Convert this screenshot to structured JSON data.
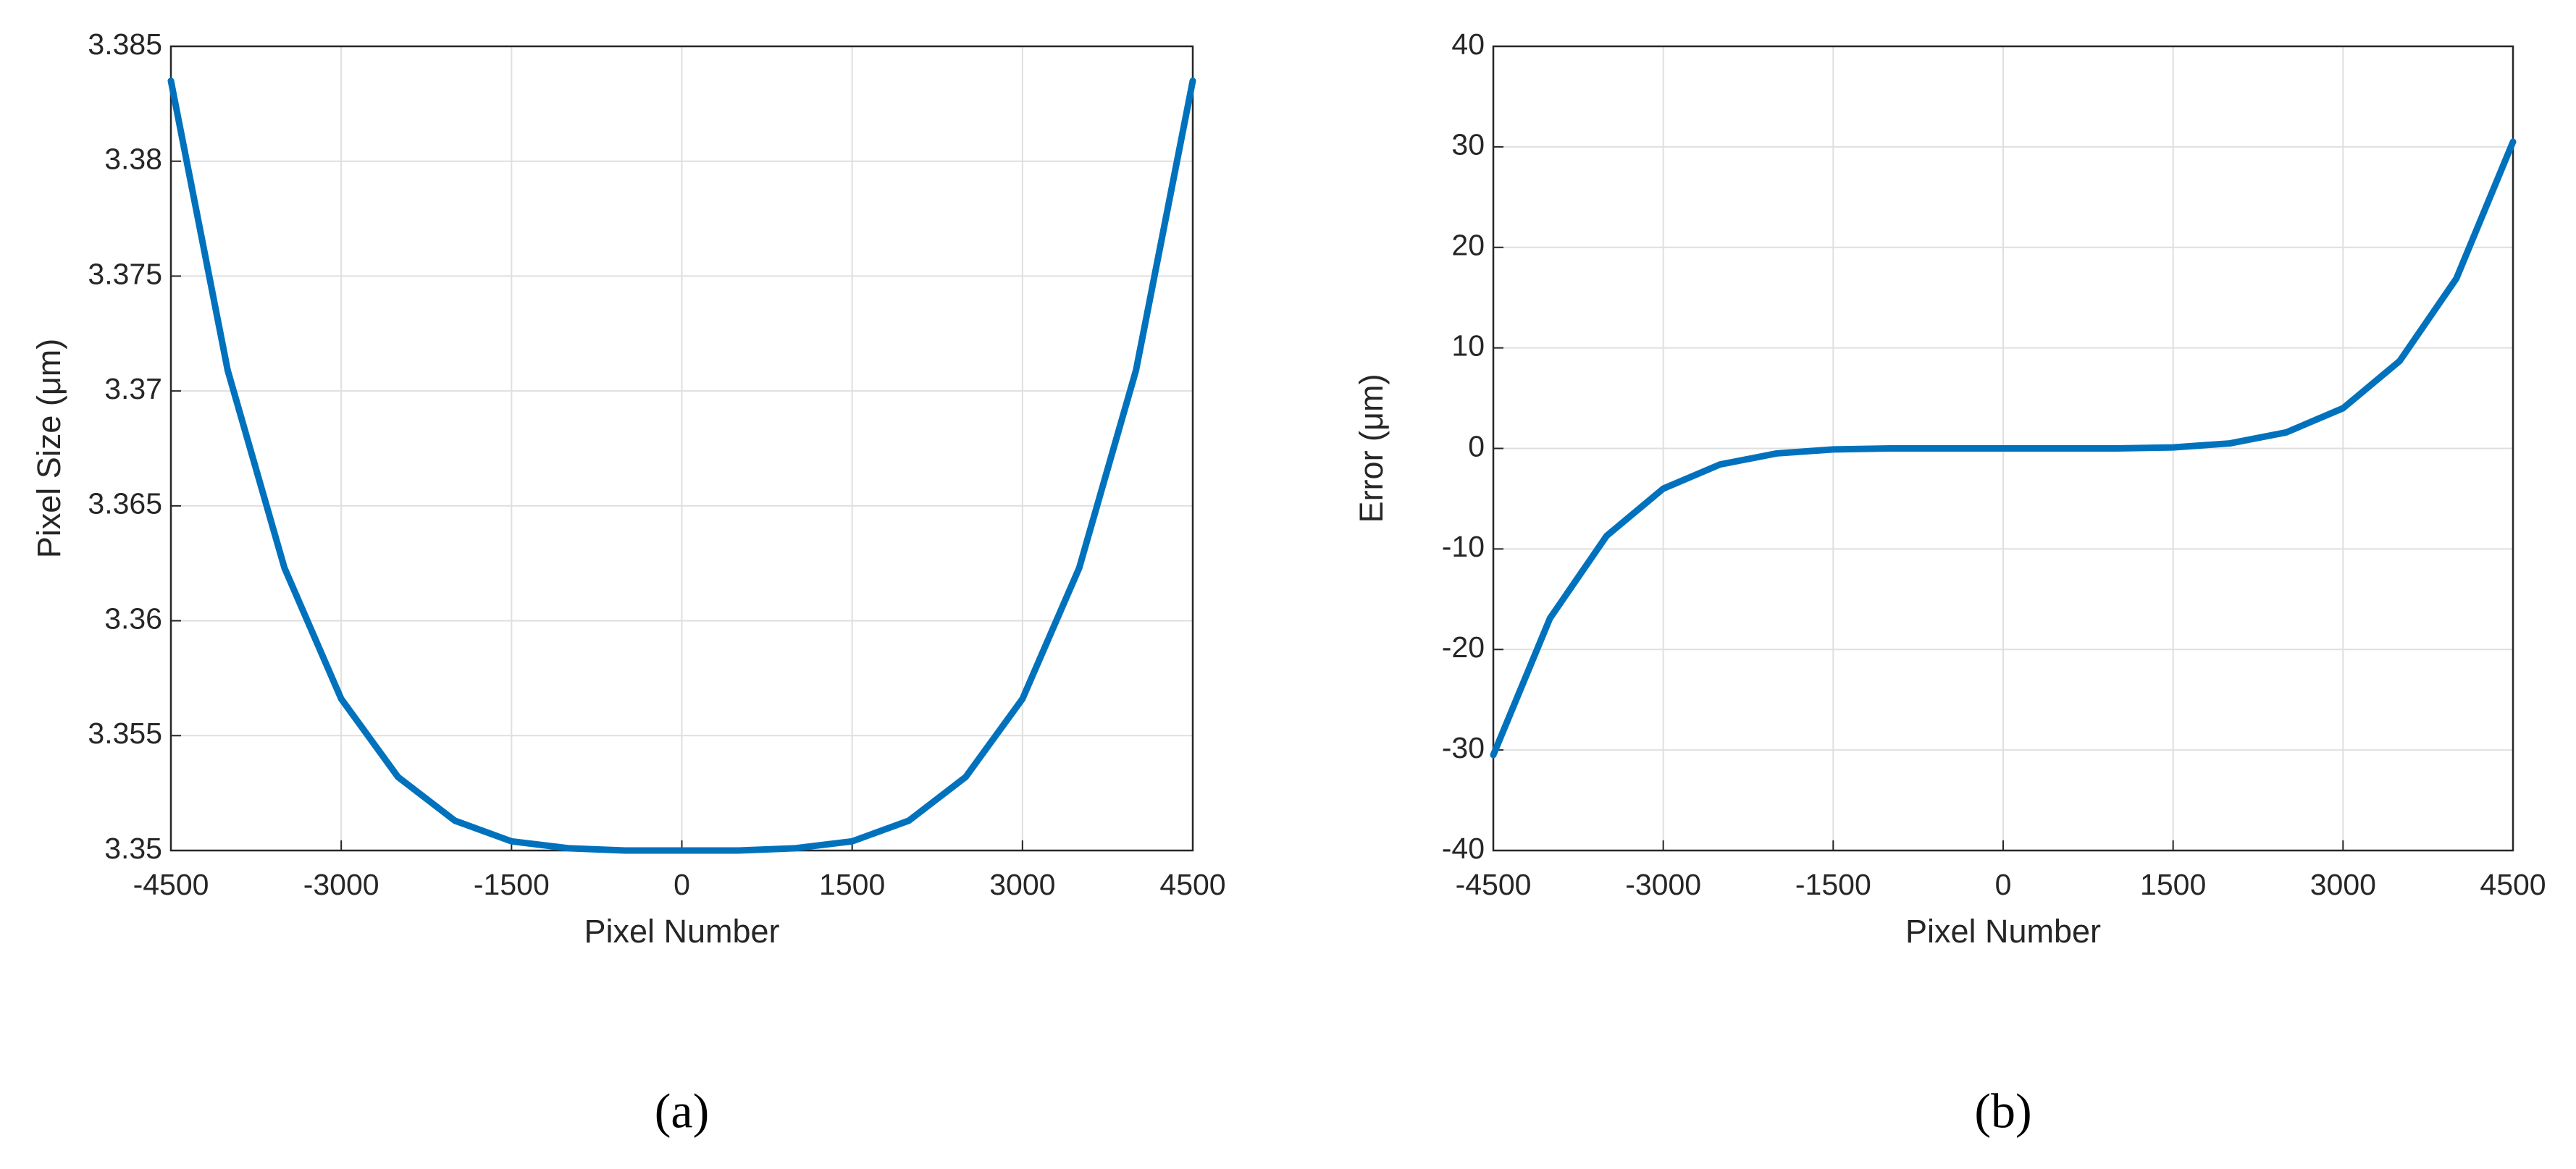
{
  "chart_data": [
    {
      "type": "line",
      "caption": "(a)",
      "xlabel": "Pixel Number",
      "ylabel": "Pixel Size (μm)",
      "x": [
        -4500,
        -4000,
        -3500,
        -3000,
        -2500,
        -2000,
        -1500,
        -1000,
        -500,
        0,
        500,
        1000,
        1500,
        2000,
        2500,
        3000,
        3500,
        4000,
        4500
      ],
      "values": [
        3.3835,
        3.3709,
        3.3623,
        3.3566,
        3.3532,
        3.3513,
        3.3504,
        3.3501,
        3.35,
        3.35,
        3.35,
        3.3501,
        3.3504,
        3.3513,
        3.3532,
        3.3566,
        3.3623,
        3.3709,
        3.3835
      ],
      "color": "#0072bd",
      "xlim": [
        -4500,
        4500
      ],
      "xticks": [
        -4500,
        -3000,
        -1500,
        0,
        1500,
        3000,
        4500
      ],
      "ylim": [
        3.35,
        3.385
      ],
      "yticks": [
        3.35,
        3.355,
        3.36,
        3.365,
        3.37,
        3.375,
        3.38,
        3.385
      ],
      "grid": true
    },
    {
      "type": "line",
      "caption": "(b)",
      "xlabel": "Pixel Number",
      "ylabel": "Error (μm)",
      "x": [
        -4500,
        -4000,
        -3500,
        -3000,
        -2500,
        -2000,
        -1500,
        -1000,
        -500,
        0,
        500,
        1000,
        1500,
        2000,
        2500,
        3000,
        3500,
        4000,
        4500
      ],
      "values": [
        -30.5,
        -16.9,
        -8.7,
        -4.0,
        -1.6,
        -0.5,
        -0.1,
        0,
        0,
        0,
        0,
        0,
        0.1,
        0.5,
        1.6,
        4.0,
        8.7,
        16.9,
        30.5
      ],
      "color": "#0072bd",
      "xlim": [
        -4500,
        4500
      ],
      "xticks": [
        -4500,
        -3000,
        -1500,
        0,
        1500,
        3000,
        4500
      ],
      "ylim": [
        -40,
        40
      ],
      "yticks": [
        -40,
        -30,
        -20,
        -10,
        0,
        10,
        20,
        30,
        40
      ],
      "grid": true
    }
  ]
}
